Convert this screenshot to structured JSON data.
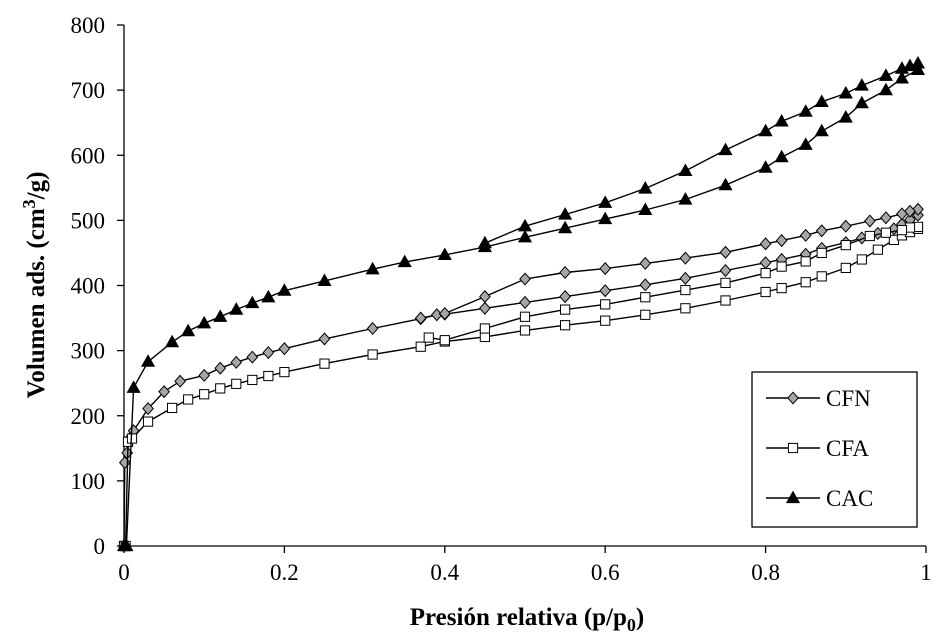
{
  "chart_data": {
    "type": "line",
    "xlabel": "Presión relativa (p/p",
    "xlabel_sub": "0",
    "xlabel_close": ")",
    "ylabel": "Volumen ads. (cm",
    "ylabel_sup": "3",
    "ylabel_close": "/g)",
    "xlim": [
      0,
      1
    ],
    "ylim": [
      0,
      800
    ],
    "xticks": [
      0,
      0.2,
      0.4,
      0.6,
      0.8,
      1
    ],
    "xtick_labels": [
      "0",
      "0.2",
      "0.4",
      "0.6",
      "0.8",
      "1"
    ],
    "yticks": [
      0,
      100,
      200,
      300,
      400,
      500,
      600,
      700,
      800
    ],
    "ytick_labels": [
      "0",
      "100",
      "200",
      "300",
      "400",
      "500",
      "600",
      "700",
      "800"
    ],
    "grid": false,
    "legend_position": "bottom-right",
    "series": [
      {
        "name": "CFN",
        "marker": "diamond",
        "marker_fill": "#a6a6a6",
        "adsorption": [
          [
            0.0,
            0
          ],
          [
            0.001,
            128
          ],
          [
            0.004,
            143
          ],
          [
            0.007,
            165
          ],
          [
            0.012,
            177
          ],
          [
            0.03,
            211
          ],
          [
            0.05,
            237
          ],
          [
            0.07,
            253
          ],
          [
            0.1,
            262
          ],
          [
            0.12,
            273
          ],
          [
            0.14,
            282
          ],
          [
            0.16,
            290
          ],
          [
            0.18,
            297
          ],
          [
            0.2,
            303
          ],
          [
            0.25,
            318
          ],
          [
            0.31,
            334
          ],
          [
            0.37,
            349
          ],
          [
            0.39,
            355
          ],
          [
            0.4,
            356
          ],
          [
            0.45,
            365
          ],
          [
            0.5,
            374
          ],
          [
            0.55,
            383
          ],
          [
            0.6,
            392
          ],
          [
            0.65,
            401
          ],
          [
            0.7,
            411
          ],
          [
            0.75,
            423
          ],
          [
            0.8,
            435
          ],
          [
            0.82,
            440
          ],
          [
            0.85,
            448
          ],
          [
            0.87,
            457
          ],
          [
            0.9,
            466
          ],
          [
            0.92,
            473
          ],
          [
            0.94,
            480
          ],
          [
            0.96,
            487
          ],
          [
            0.97,
            494
          ],
          [
            0.98,
            501
          ],
          [
            0.99,
            508
          ]
        ],
        "desorption": [
          [
            0.99,
            517
          ],
          [
            0.98,
            514
          ],
          [
            0.97,
            510
          ],
          [
            0.95,
            504
          ],
          [
            0.93,
            499
          ],
          [
            0.9,
            491
          ],
          [
            0.87,
            484
          ],
          [
            0.85,
            477
          ],
          [
            0.82,
            469
          ],
          [
            0.8,
            464
          ],
          [
            0.75,
            451
          ],
          [
            0.7,
            442
          ],
          [
            0.65,
            434
          ],
          [
            0.6,
            426
          ],
          [
            0.55,
            420
          ],
          [
            0.5,
            410
          ],
          [
            0.45,
            383
          ],
          [
            0.4,
            357
          ],
          [
            0.37,
            350
          ]
        ]
      },
      {
        "name": "CFA",
        "marker": "square",
        "marker_fill": "#ffffff",
        "adsorption": [
          [
            0.0,
            0
          ],
          [
            0.002,
            0
          ],
          [
            0.005,
            160
          ],
          [
            0.01,
            165
          ],
          [
            0.03,
            191
          ],
          [
            0.06,
            212
          ],
          [
            0.08,
            225
          ],
          [
            0.1,
            233
          ],
          [
            0.12,
            242
          ],
          [
            0.14,
            249
          ],
          [
            0.16,
            255
          ],
          [
            0.18,
            261
          ],
          [
            0.2,
            267
          ],
          [
            0.25,
            280
          ],
          [
            0.31,
            294
          ],
          [
            0.37,
            306
          ],
          [
            0.4,
            314
          ],
          [
            0.45,
            321
          ],
          [
            0.5,
            331
          ],
          [
            0.55,
            339
          ],
          [
            0.6,
            346
          ],
          [
            0.65,
            355
          ],
          [
            0.7,
            365
          ],
          [
            0.75,
            377
          ],
          [
            0.8,
            390
          ],
          [
            0.82,
            396
          ],
          [
            0.85,
            405
          ],
          [
            0.87,
            414
          ],
          [
            0.9,
            427
          ],
          [
            0.92,
            440
          ],
          [
            0.94,
            455
          ],
          [
            0.96,
            470
          ],
          [
            0.97,
            477
          ],
          [
            0.98,
            482
          ],
          [
            0.99,
            487
          ]
        ],
        "desorption": [
          [
            0.99,
            490
          ],
          [
            0.98,
            489
          ],
          [
            0.97,
            485
          ],
          [
            0.95,
            481
          ],
          [
            0.93,
            476
          ],
          [
            0.9,
            462
          ],
          [
            0.87,
            450
          ],
          [
            0.85,
            437
          ],
          [
            0.82,
            429
          ],
          [
            0.8,
            419
          ],
          [
            0.75,
            404
          ],
          [
            0.7,
            393
          ],
          [
            0.65,
            382
          ],
          [
            0.6,
            371
          ],
          [
            0.55,
            363
          ],
          [
            0.5,
            352
          ],
          [
            0.45,
            334
          ],
          [
            0.4,
            316
          ],
          [
            0.38,
            320
          ]
        ]
      },
      {
        "name": "CAC",
        "marker": "triangle",
        "marker_fill": "#000000",
        "adsorption": [
          [
            0.0,
            0
          ],
          [
            0.003,
            0
          ],
          [
            0.012,
            243
          ],
          [
            0.03,
            283
          ],
          [
            0.06,
            313
          ],
          [
            0.08,
            330
          ],
          [
            0.1,
            342
          ],
          [
            0.12,
            352
          ],
          [
            0.14,
            363
          ],
          [
            0.16,
            373
          ],
          [
            0.18,
            382
          ],
          [
            0.2,
            392
          ],
          [
            0.25,
            407
          ],
          [
            0.31,
            425
          ],
          [
            0.35,
            436
          ],
          [
            0.4,
            447
          ],
          [
            0.45,
            459
          ],
          [
            0.5,
            474
          ],
          [
            0.55,
            488
          ],
          [
            0.6,
            502
          ],
          [
            0.65,
            516
          ],
          [
            0.7,
            532
          ],
          [
            0.75,
            554
          ],
          [
            0.8,
            581
          ],
          [
            0.82,
            597
          ],
          [
            0.85,
            616
          ],
          [
            0.87,
            637
          ],
          [
            0.9,
            658
          ],
          [
            0.92,
            680
          ],
          [
            0.95,
            700
          ],
          [
            0.97,
            718
          ],
          [
            0.99,
            731
          ]
        ],
        "desorption": [
          [
            0.99,
            741
          ],
          [
            0.98,
            737
          ],
          [
            0.97,
            733
          ],
          [
            0.95,
            722
          ],
          [
            0.92,
            707
          ],
          [
            0.9,
            695
          ],
          [
            0.87,
            682
          ],
          [
            0.85,
            667
          ],
          [
            0.82,
            652
          ],
          [
            0.8,
            637
          ],
          [
            0.75,
            608
          ],
          [
            0.7,
            576
          ],
          [
            0.65,
            549
          ],
          [
            0.6,
            527
          ],
          [
            0.55,
            509
          ],
          [
            0.5,
            491
          ],
          [
            0.45,
            465
          ]
        ]
      }
    ]
  }
}
